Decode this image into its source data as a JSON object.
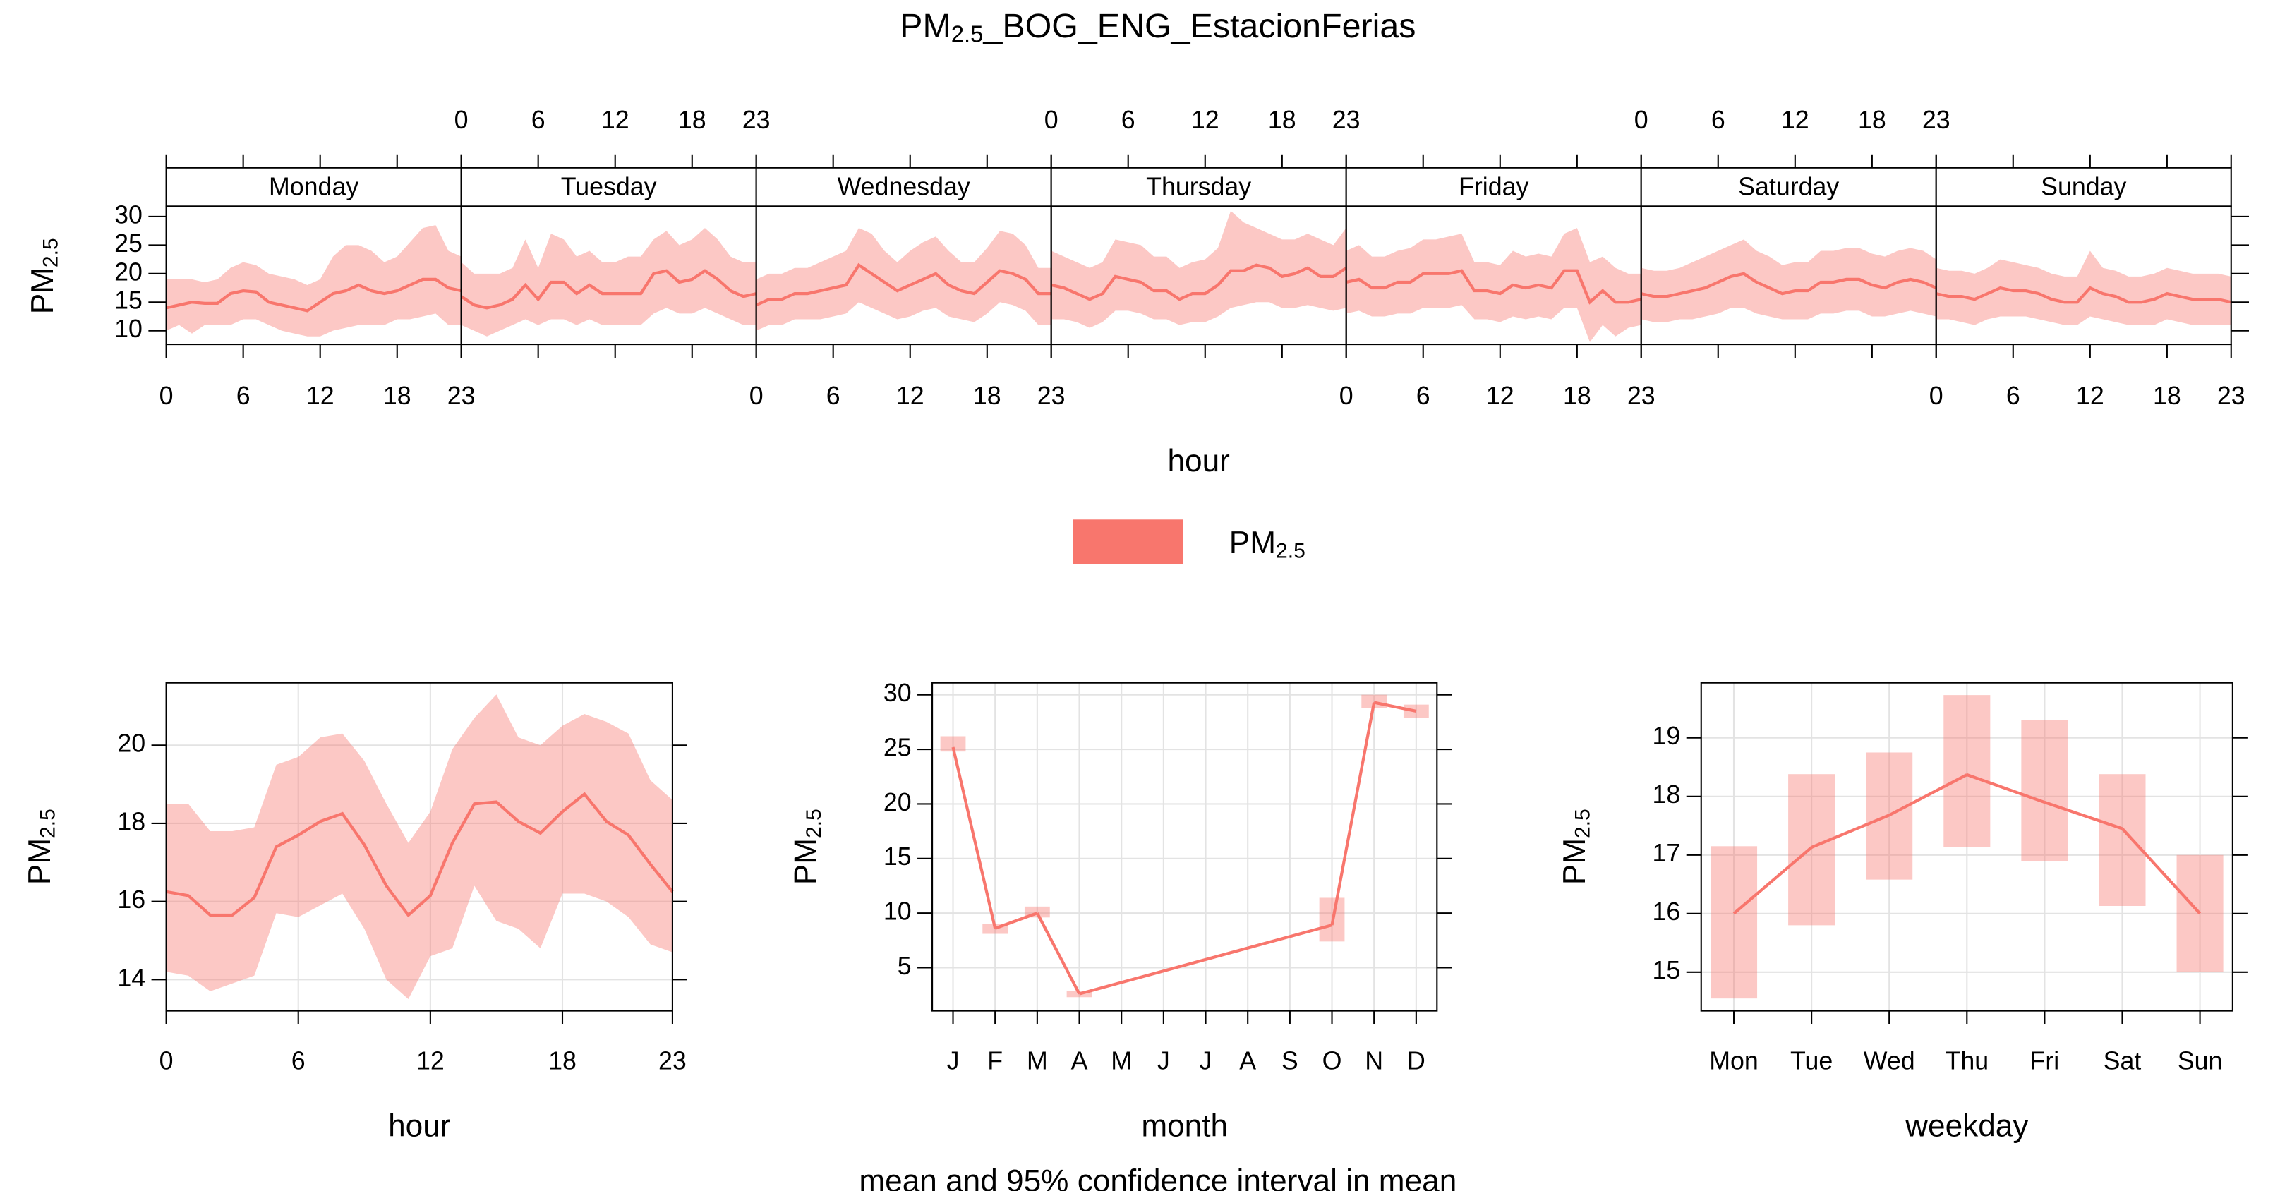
{
  "title": {
    "text": "PM",
    "sub": "2.5",
    "rest": "_BOG_ENG_EstacionFerias"
  },
  "legend": {
    "text": "PM",
    "sub": "2.5",
    "color": "#f8766d"
  },
  "caption": "mean and 95% confidence interval in mean",
  "chart_data": [
    {
      "type": "line-band",
      "color": "#f8766d",
      "xlabel": "hour",
      "ylabel": {
        "text": "PM",
        "sub": "2.5"
      },
      "x": [
        0,
        1,
        2,
        3,
        4,
        5,
        6,
        7,
        8,
        9,
        10,
        11,
        12,
        13,
        14,
        15,
        16,
        17,
        18,
        19,
        20,
        21,
        22,
        23
      ],
      "xlim": [
        0,
        23
      ],
      "xticks": [
        0,
        6,
        12,
        18,
        23
      ],
      "ylim": [
        7.6,
        31.8
      ],
      "yticks": [
        10,
        15,
        20,
        25,
        30
      ],
      "panels": [
        {
          "name": "Monday",
          "values": [
            14,
            14.5,
            15,
            14.8,
            14.8,
            16.5,
            17,
            16.8,
            15,
            14.5,
            14,
            13.5,
            15,
            16.5,
            17,
            18,
            17,
            16.5,
            17,
            18,
            19,
            19,
            17.5,
            17
          ],
          "lower": [
            10,
            11,
            9.5,
            11,
            11,
            11,
            12,
            12,
            11,
            10,
            9.5,
            9,
            9,
            10,
            10.5,
            11,
            11,
            11,
            12,
            12,
            12.5,
            13,
            11,
            11
          ],
          "upper": [
            19,
            19,
            19,
            18.5,
            19,
            21,
            22,
            21.5,
            20,
            19.5,
            19,
            18,
            19,
            23,
            25,
            25,
            24,
            22,
            23,
            25.5,
            28,
            28.5,
            24,
            23
          ]
        },
        {
          "name": "Tuesday",
          "values": [
            16,
            14.5,
            14,
            14.5,
            15.5,
            18,
            15.5,
            18.5,
            18.5,
            16.5,
            18,
            16.5,
            16.5,
            16.5,
            16.5,
            20,
            20.5,
            18.5,
            19,
            20.5,
            19,
            17,
            16,
            16.5
          ],
          "lower": [
            11,
            10,
            9,
            10,
            11,
            12,
            11,
            12,
            12,
            11,
            12,
            11,
            11,
            11,
            11,
            13,
            14,
            13,
            13,
            14,
            13,
            12,
            11,
            11
          ],
          "upper": [
            22,
            20,
            20,
            20,
            21,
            26,
            21,
            27,
            26,
            23,
            24,
            22,
            22,
            23,
            23,
            26,
            27.5,
            25,
            26,
            28,
            26,
            23,
            22,
            22
          ]
        },
        {
          "name": "Wednesday",
          "values": [
            14.5,
            15.5,
            15.5,
            16.5,
            16.5,
            17,
            17.5,
            18,
            21.5,
            20,
            18.5,
            17,
            18,
            19,
            20,
            18,
            17,
            16.5,
            18.5,
            20.5,
            20,
            19,
            16.5,
            16.5
          ],
          "lower": [
            10,
            11,
            11,
            12,
            12,
            12,
            12.5,
            13,
            15,
            14,
            13,
            12,
            12.5,
            13.5,
            14,
            12.5,
            12,
            11.5,
            13,
            15,
            14.5,
            13.5,
            11,
            11
          ],
          "upper": [
            19,
            20,
            20,
            21,
            21,
            22,
            23,
            24,
            28,
            27,
            24,
            22,
            24,
            25.5,
            26.5,
            24,
            22,
            22,
            24.5,
            27.5,
            27,
            25,
            21,
            21
          ]
        },
        {
          "name": "Thursday",
          "values": [
            18,
            17.5,
            16.5,
            15.5,
            16.5,
            19.5,
            19,
            18.5,
            17,
            17,
            15.5,
            16.5,
            16.5,
            18,
            20.5,
            20.5,
            21.5,
            21,
            19.5,
            20,
            21,
            19.5,
            19.5,
            21
          ],
          "lower": [
            12,
            12,
            11.5,
            10.5,
            11.5,
            13.5,
            13.5,
            13,
            12,
            12,
            11,
            11.5,
            11.5,
            12.5,
            14,
            14.5,
            15,
            15,
            14,
            14,
            14.5,
            14,
            13.5,
            14
          ],
          "upper": [
            24,
            23,
            22,
            21,
            22,
            26,
            25.5,
            25,
            23,
            23,
            21,
            22,
            22.5,
            24.5,
            31,
            29,
            28,
            27,
            26,
            26,
            27,
            26,
            25,
            28
          ]
        },
        {
          "name": "Friday",
          "values": [
            18.5,
            19,
            17.5,
            17.5,
            18.5,
            18.5,
            20,
            20,
            20,
            20.5,
            17,
            17,
            16.5,
            18,
            17.5,
            18,
            17.5,
            20.5,
            20.5,
            15,
            17,
            15,
            15,
            15.5
          ],
          "lower": [
            13,
            13.5,
            12.5,
            12.5,
            13,
            13,
            14,
            14,
            14,
            14.5,
            12,
            12,
            11.5,
            12.5,
            12,
            12.5,
            12,
            14,
            14,
            8,
            11,
            9,
            10.5,
            11
          ],
          "upper": [
            24,
            25,
            23,
            23,
            24,
            24.5,
            26,
            26,
            26.5,
            27,
            22,
            22,
            21.5,
            24,
            23,
            23.5,
            23,
            27,
            28,
            22,
            23,
            21,
            20,
            20
          ]
        },
        {
          "name": "Saturday",
          "values": [
            16.5,
            16,
            16,
            16.5,
            17,
            17.5,
            18.5,
            19.5,
            20,
            18.5,
            17.5,
            16.5,
            17,
            17,
            18.5,
            18.5,
            19,
            19,
            18,
            17.5,
            18.5,
            19,
            18.5,
            17.5
          ],
          "lower": [
            12,
            11.5,
            11.5,
            12,
            12,
            12.5,
            13,
            14,
            14,
            13,
            12.5,
            12,
            12,
            12,
            13,
            13,
            13.5,
            13.5,
            12.5,
            12.5,
            13,
            13.5,
            13,
            12.5
          ],
          "upper": [
            21,
            20.5,
            20.5,
            21,
            22,
            23,
            24,
            25,
            26,
            24,
            23,
            21.5,
            22,
            22,
            24,
            24,
            24.5,
            24.5,
            23.5,
            23,
            24,
            24.5,
            24,
            22.5
          ]
        },
        {
          "name": "Sunday",
          "values": [
            16.5,
            16,
            16,
            15.5,
            16.5,
            17.5,
            17,
            17,
            16.5,
            15.5,
            15,
            15,
            17.5,
            16.5,
            16,
            15,
            15,
            15.5,
            16.5,
            16,
            15.5,
            15.5,
            15.5,
            15
          ],
          "lower": [
            12,
            12,
            11.5,
            11,
            12,
            12.5,
            12.5,
            12.5,
            12,
            11.5,
            11,
            11,
            12.5,
            12,
            11.5,
            11,
            11,
            11,
            12,
            11.5,
            11,
            11,
            11,
            11
          ],
          "upper": [
            21,
            20.5,
            20.5,
            20,
            21,
            22.5,
            22,
            21.5,
            21,
            20,
            19.5,
            19.5,
            24,
            21,
            20.5,
            19.5,
            19.5,
            20,
            21,
            20.5,
            20,
            20,
            20,
            19.5
          ]
        }
      ]
    },
    {
      "type": "line-band",
      "color": "#f8766d",
      "grid": true,
      "xlabel": "hour",
      "ylabel": {
        "text": "PM",
        "sub": "2.5"
      },
      "x": [
        0,
        1,
        2,
        3,
        4,
        5,
        6,
        7,
        8,
        9,
        10,
        11,
        12,
        13,
        14,
        15,
        16,
        17,
        18,
        19,
        20,
        21,
        22,
        23
      ],
      "xlim": [
        0,
        23
      ],
      "xticks": [
        0,
        6,
        12,
        18,
        23
      ],
      "ylim": [
        13.2,
        21.6
      ],
      "yticks": [
        14,
        16,
        18,
        20
      ],
      "values": [
        16.25,
        16.15,
        15.65,
        15.65,
        16.1,
        17.4,
        17.7,
        18.05,
        18.25,
        17.45,
        16.4,
        15.65,
        16.15,
        17.5,
        18.5,
        18.55,
        18.05,
        17.75,
        18.3,
        18.75,
        18.05,
        17.7,
        16.95,
        16.25
      ],
      "lower": [
        14.2,
        14.1,
        13.7,
        13.9,
        14.1,
        15.7,
        15.6,
        15.9,
        16.2,
        15.3,
        14.0,
        13.5,
        14.6,
        14.8,
        16.4,
        15.5,
        15.3,
        14.8,
        16.2,
        16.2,
        16.0,
        15.6,
        14.9,
        14.7
      ],
      "upper": [
        18.5,
        18.5,
        17.8,
        17.8,
        17.9,
        19.5,
        19.7,
        20.2,
        20.3,
        19.6,
        18.5,
        17.5,
        18.3,
        19.9,
        20.7,
        21.3,
        20.2,
        20.0,
        20.5,
        20.8,
        20.6,
        20.3,
        19.1,
        18.6
      ]
    },
    {
      "type": "line-bars",
      "color": "#f8766d",
      "grid": true,
      "xlabel": "month",
      "ylabel": {
        "text": "PM",
        "sub": "2.5"
      },
      "categories": [
        "J",
        "F",
        "M",
        "A",
        "M",
        "J",
        "J",
        "A",
        "S",
        "O",
        "N",
        "D"
      ],
      "ylim": [
        1.05,
        31.1
      ],
      "yticks": [
        5,
        10,
        15,
        20,
        25,
        30
      ],
      "values": [
        25.2,
        8.6,
        10.0,
        2.6,
        null,
        null,
        null,
        null,
        null,
        8.9,
        29.3,
        28.5
      ],
      "lower": [
        24.8,
        8.1,
        9.6,
        2.3,
        null,
        null,
        null,
        null,
        null,
        7.4,
        28.8,
        27.9
      ],
      "upper": [
        26.2,
        9.0,
        10.6,
        2.9,
        null,
        null,
        null,
        null,
        null,
        11.4,
        30.0,
        29.1
      ]
    },
    {
      "type": "line-bars",
      "color": "#f8766d",
      "grid": true,
      "xlabel": "weekday",
      "ylabel": {
        "text": "PM",
        "sub": "2.5"
      },
      "categories": [
        "Mon",
        "Tue",
        "Wed",
        "Thu",
        "Fri",
        "Sat",
        "Sun"
      ],
      "ylim": [
        14.34,
        19.94
      ],
      "yticks": [
        15,
        16,
        17,
        18,
        19
      ],
      "values": [
        16.0,
        17.13,
        17.68,
        18.37,
        17.9,
        17.45,
        16.0
      ],
      "lower": [
        14.55,
        15.8,
        16.58,
        17.13,
        16.9,
        16.13,
        15.0
      ],
      "upper": [
        17.15,
        18.38,
        18.75,
        19.73,
        19.3,
        18.38,
        17.0
      ]
    }
  ]
}
